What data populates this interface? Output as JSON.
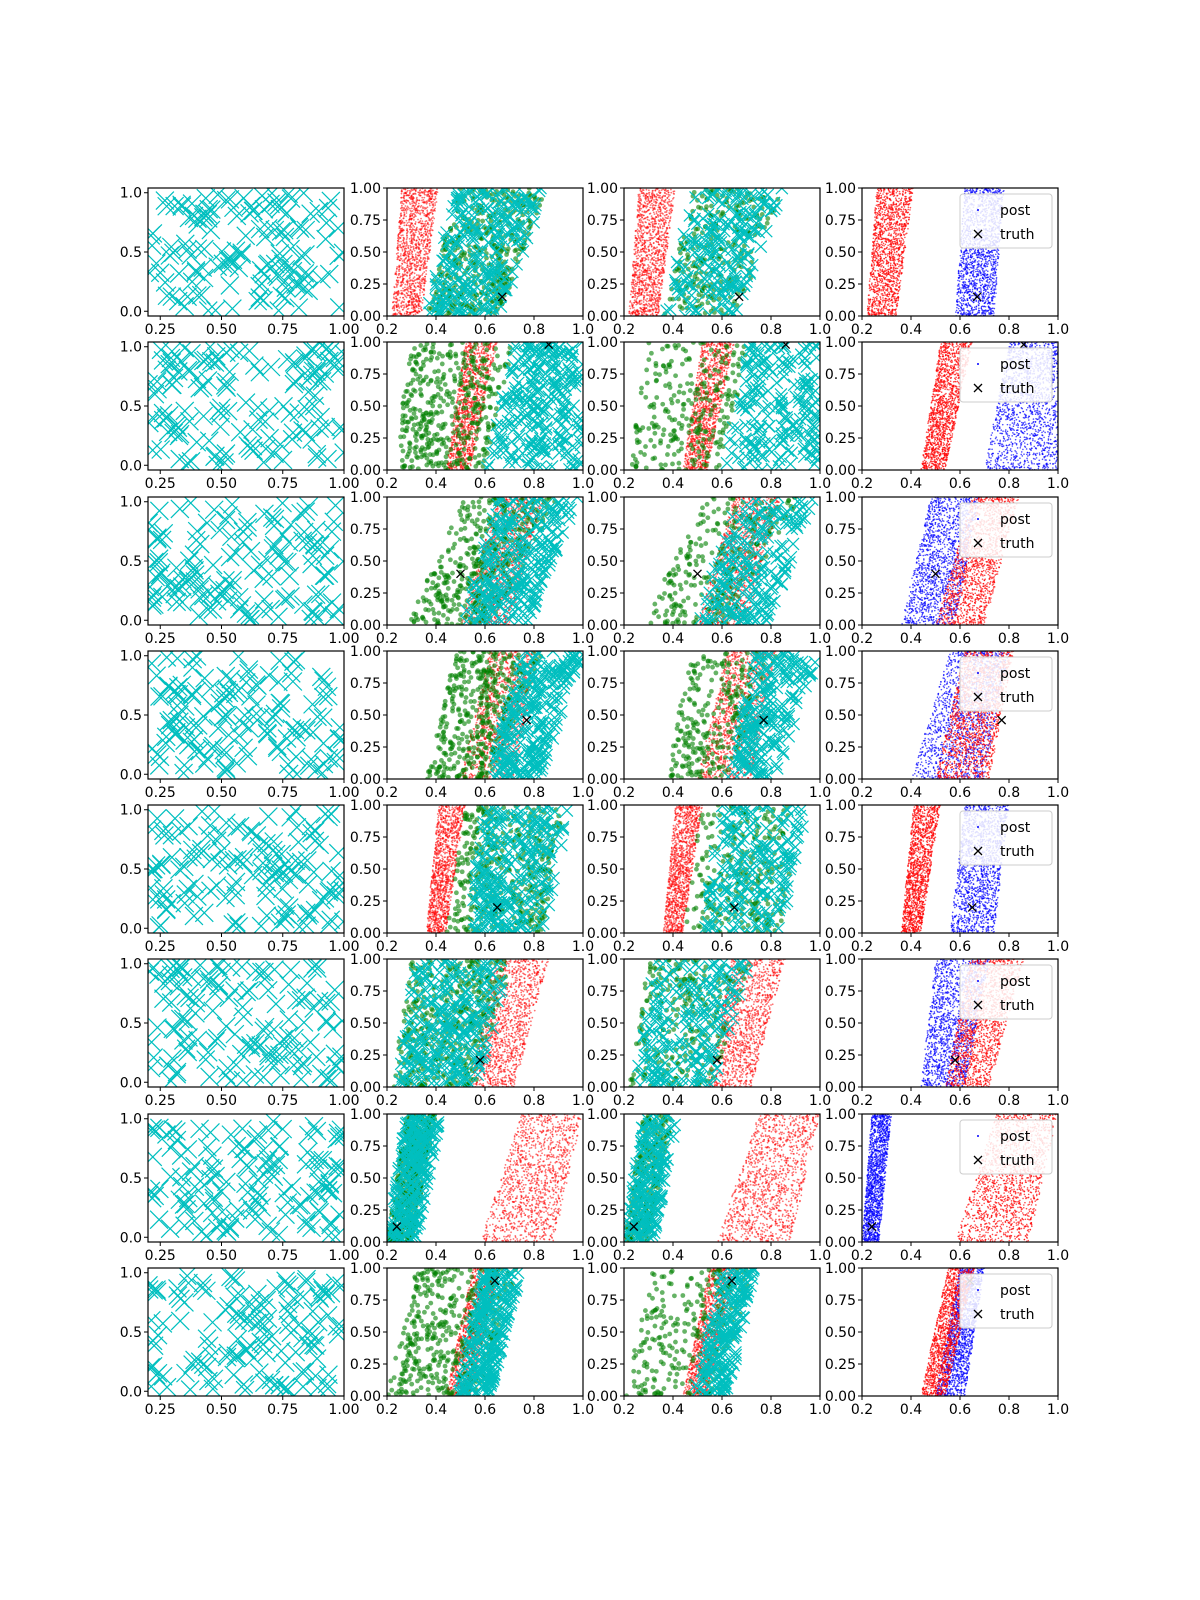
{
  "chart_data": {
    "type": "scatter",
    "layout": {
      "rows": 8,
      "cols": 4
    },
    "colors": {
      "samples": "#00bfbf",
      "prior": "#008000",
      "posterior": "#ff0000",
      "post": "#0000ff",
      "truth": "#000000"
    },
    "legend": {
      "entries": [
        "post",
        "truth"
      ],
      "placement": "upper-right"
    },
    "col0_axes": {
      "xlim": [
        0.2,
        1.0
      ],
      "ylim": [
        -0.04,
        1.04
      ],
      "xticks": [
        "0.25",
        "0.50",
        "0.75",
        "1.00"
      ],
      "yticks": [
        "0.0",
        "0.5",
        "1.0"
      ]
    },
    "band_axes": {
      "xlim": [
        0.2,
        1.0
      ],
      "ylim": [
        0.0,
        1.0
      ],
      "xticks": [
        "0.2",
        "0.4",
        "0.6",
        "0.8",
        "1.0"
      ],
      "yticks": [
        "0.00",
        "0.25",
        "0.50",
        "0.75",
        "1.00"
      ]
    },
    "rows": [
      {
        "truth": [
          0.67,
          0.15
        ],
        "prior_band": [
          0.36,
          0.66,
          0.48,
          0.85
        ],
        "red_band": [
          0.22,
          0.34,
          0.26,
          0.41
        ],
        "blue_band": [
          0.58,
          0.74,
          0.62,
          0.78
        ],
        "cyan_band": [
          0.36,
          0.66,
          0.48,
          0.85
        ],
        "cyan_order": "top"
      },
      {
        "truth": [
          0.86,
          0.98
        ],
        "prior_band": [
          0.22,
          0.6,
          0.3,
          0.72
        ],
        "red_band": [
          0.44,
          0.54,
          0.52,
          0.65
        ],
        "blue_band": [
          0.7,
          1.0,
          0.8,
          1.0
        ],
        "cyan_band": [
          0.6,
          1.0,
          0.72,
          1.0
        ],
        "cyan_order": "top"
      },
      {
        "truth": [
          0.5,
          0.4
        ],
        "prior_band": [
          0.28,
          0.62,
          0.52,
          0.92
        ],
        "red_band": [
          0.5,
          0.7,
          0.65,
          0.84
        ],
        "blue_band": [
          0.36,
          0.58,
          0.48,
          0.68
        ],
        "cyan_band": [
          0.5,
          0.78,
          0.66,
          0.98
        ],
        "cyan_order": "top"
      },
      {
        "truth": [
          0.77,
          0.46
        ],
        "prior_band": [
          0.36,
          0.62,
          0.48,
          0.84
        ],
        "red_band": [
          0.5,
          0.72,
          0.62,
          0.82
        ],
        "blue_band": [
          0.4,
          0.7,
          0.56,
          0.8
        ],
        "cyan_band": [
          0.62,
          0.82,
          0.74,
          1.0
        ],
        "cyan_order": "top"
      },
      {
        "truth": [
          0.65,
          0.2
        ],
        "prior_band": [
          0.44,
          0.84,
          0.52,
          0.92
        ],
        "red_band": [
          0.36,
          0.44,
          0.41,
          0.52
        ],
        "blue_band": [
          0.56,
          0.74,
          0.62,
          0.8
        ],
        "cyan_band": [
          0.52,
          0.84,
          0.6,
          0.95
        ],
        "cyan_order": "top"
      },
      {
        "truth": [
          0.58,
          0.21
        ],
        "prior_band": [
          0.22,
          0.56,
          0.3,
          0.72
        ],
        "red_band": [
          0.54,
          0.72,
          0.64,
          0.86
        ],
        "blue_band": [
          0.44,
          0.62,
          0.5,
          0.72
        ],
        "cyan_band": [
          0.24,
          0.56,
          0.32,
          0.72
        ],
        "cyan_order": "top"
      },
      {
        "truth": [
          0.24,
          0.12
        ],
        "prior_band": [
          0.2,
          0.3,
          0.28,
          0.4
        ],
        "red_band": [
          0.58,
          0.88,
          0.75,
          1.0
        ],
        "blue_band": [
          0.2,
          0.27,
          0.24,
          0.32
        ],
        "cyan_band": [
          0.2,
          0.32,
          0.28,
          0.42
        ],
        "cyan_order": "top"
      },
      {
        "truth": [
          0.64,
          0.9
        ],
        "prior_band": [
          0.2,
          0.58,
          0.32,
          0.74
        ],
        "red_band": [
          0.44,
          0.54,
          0.55,
          0.66
        ],
        "blue_band": [
          0.5,
          0.62,
          0.6,
          0.7
        ],
        "cyan_band": [
          0.48,
          0.62,
          0.6,
          0.75
        ],
        "cyan_order": "top"
      }
    ]
  }
}
